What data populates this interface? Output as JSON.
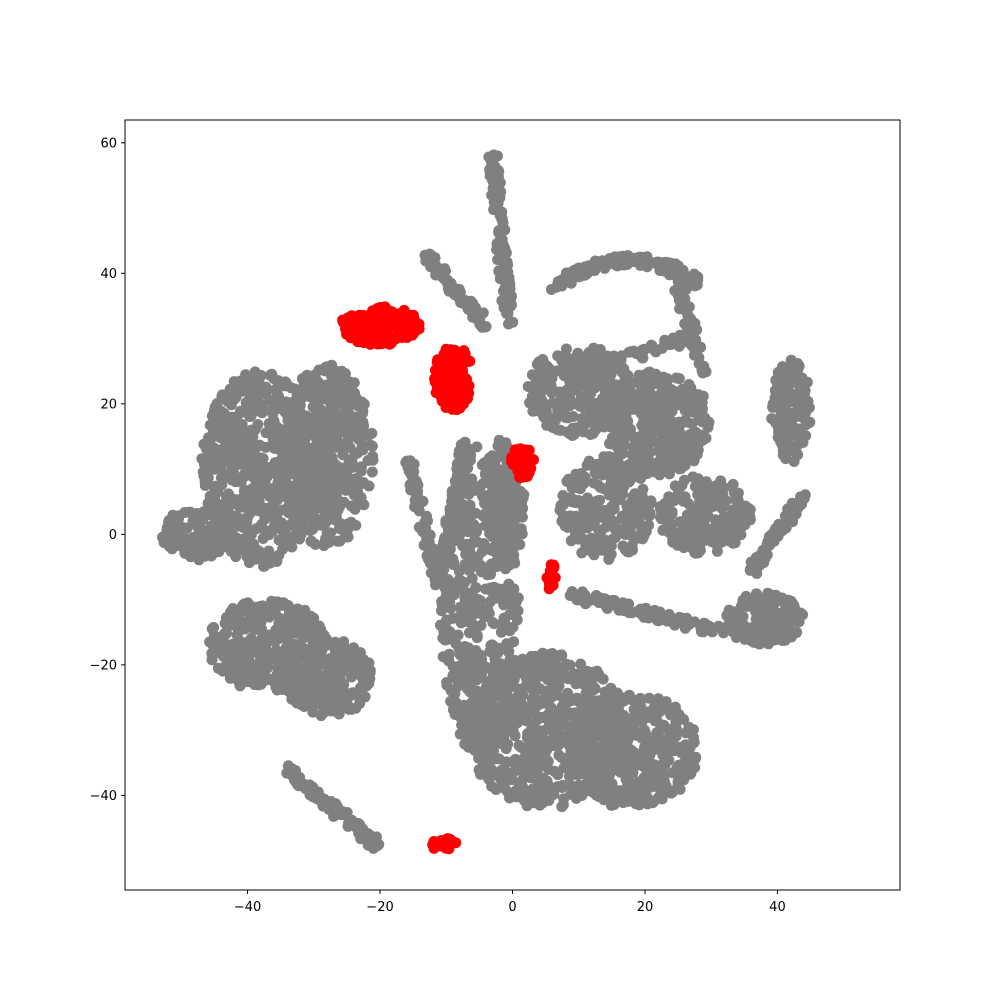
{
  "chart_data": {
    "type": "scatter",
    "title": "",
    "xlabel": "",
    "ylabel": "",
    "xlim": [
      -58.5,
      58.5
    ],
    "ylim": [
      -54.5,
      63.5
    ],
    "xticks": [
      -40,
      -20,
      0,
      20,
      40
    ],
    "xtick_labels": [
      "−40",
      "−20",
      "0",
      "20",
      "40"
    ],
    "yticks": [
      -40,
      -20,
      0,
      20,
      40,
      60
    ],
    "ytick_labels": [
      "−40",
      "−20",
      "0",
      "20",
      "40",
      "60"
    ],
    "grid": false,
    "legend": "none",
    "series": [
      {
        "color": "#808080",
        "note_regions": [
          {
            "cx": -38,
            "cy": 10,
            "rx": 9,
            "ry": 15,
            "n": 520
          },
          {
            "cx": -28,
            "cy": 12,
            "rx": 7,
            "ry": 14,
            "n": 420
          },
          {
            "cx": -48,
            "cy": 0,
            "rx": 5,
            "ry": 4,
            "n": 90
          },
          {
            "cx": -37,
            "cy": -17,
            "rx": 9,
            "ry": 7,
            "n": 330
          },
          {
            "cx": -28,
            "cy": -22,
            "rx": 7,
            "ry": 6,
            "n": 220
          },
          {
            "cx": -33,
            "cy": -45,
            "rx": 0,
            "ry": 0,
            "n": 0
          },
          {
            "cx": -5,
            "cy": -10,
            "rx": 6,
            "ry": 24,
            "n": 480
          },
          {
            "cx": -1,
            "cy": 5,
            "rx": 3,
            "ry": 10,
            "n": 140
          },
          {
            "cx": 5,
            "cy": -30,
            "rx": 12,
            "ry": 12,
            "n": 600
          },
          {
            "cx": 18,
            "cy": -33,
            "rx": 10,
            "ry": 9,
            "n": 380
          },
          {
            "cx": 10,
            "cy": 22,
            "rx": 8,
            "ry": 7,
            "n": 260
          },
          {
            "cx": 22,
            "cy": 17,
            "rx": 8,
            "ry": 8,
            "n": 300
          },
          {
            "cx": 14,
            "cy": 4,
            "rx": 7,
            "ry": 8,
            "n": 260
          },
          {
            "cx": 29,
            "cy": 3,
            "rx": 7,
            "ry": 6,
            "n": 200
          },
          {
            "cx": 42,
            "cy": 19,
            "rx": 3,
            "ry": 8,
            "n": 140
          },
          {
            "cx": 38,
            "cy": -13,
            "rx": 6,
            "ry": 4,
            "n": 160
          }
        ]
      },
      {
        "color": "#ff0000",
        "note_regions": [
          {
            "cx": -20,
            "cy": 32,
            "rx": 6,
            "ry": 3,
            "n": 160
          },
          {
            "cx": -9,
            "cy": 24,
            "rx": 3,
            "ry": 5,
            "n": 110
          },
          {
            "cx": 1.5,
            "cy": 11,
            "rx": 1.8,
            "ry": 2.5,
            "n": 40
          },
          {
            "cx": 5.8,
            "cy": -6.5,
            "rx": 0.8,
            "ry": 2.2,
            "n": 20
          },
          {
            "cx": -10,
            "cy": -47.5,
            "rx": 2.5,
            "ry": 1,
            "n": 18
          }
        ]
      }
    ],
    "marker": "o"
  }
}
